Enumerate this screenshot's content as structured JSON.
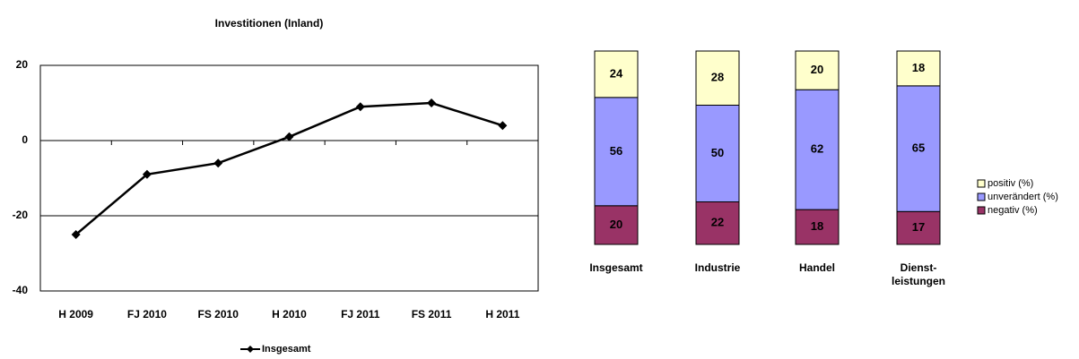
{
  "chart_data": [
    {
      "type": "line",
      "title": "Investitionen (Inland)",
      "categories": [
        "H 2009",
        "FJ 2010",
        "FS 2010",
        "H 2010",
        "FJ 2011",
        "FS 2011",
        "H 2011"
      ],
      "series": [
        {
          "name": "Insgesamt",
          "color": "#000000",
          "values": [
            -25,
            -9,
            -6,
            1,
            9,
            10,
            4
          ]
        }
      ],
      "ylim": [
        -40,
        20
      ],
      "yticks": [
        -40,
        -20,
        0,
        20
      ],
      "grid": true,
      "legend": "bottom"
    },
    {
      "type": "stacked_bar",
      "categories": [
        "Insgesamt",
        "Industrie",
        "Handel",
        "Dienst-\nleistungen"
      ],
      "series": [
        {
          "name": "negativ (%)",
          "color": "#993366",
          "values": [
            20,
            22,
            18,
            17
          ]
        },
        {
          "name": "unverändert (%)",
          "color": "#9999ff",
          "values": [
            56,
            50,
            62,
            65
          ]
        },
        {
          "name": "positiv (%)",
          "color": "#ffffcc",
          "values": [
            24,
            28,
            20,
            18
          ]
        }
      ],
      "ylim": [
        0,
        100
      ],
      "legend": "right"
    }
  ]
}
